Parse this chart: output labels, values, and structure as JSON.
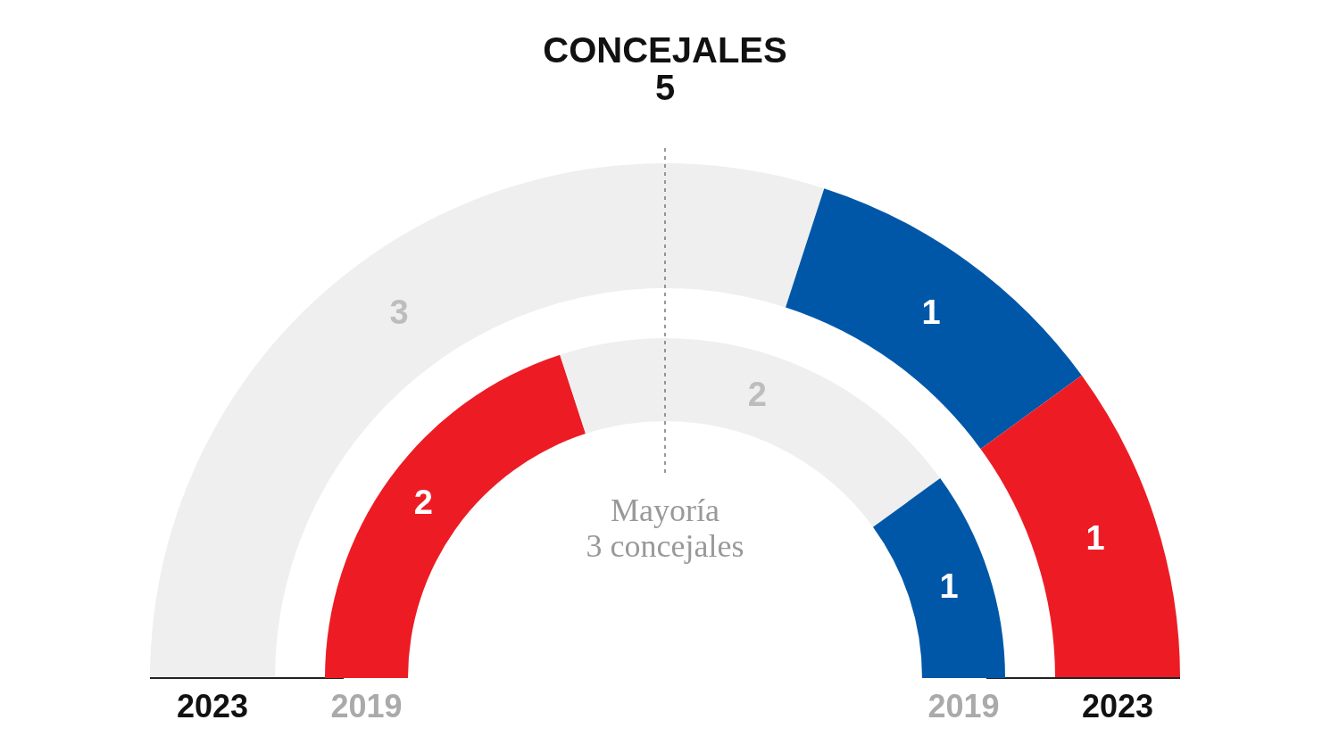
{
  "chart_data": {
    "type": "donut",
    "title": "CONCEJALES",
    "subtitle": "5",
    "categories": [
      null,
      null,
      null
    ],
    "data_labels": true,
    "series": [
      {
        "name": "2023",
        "values": [
          3,
          1,
          1
        ],
        "colors": [
          "#efefef",
          "#0057a8",
          "#ed1c24"
        ]
      },
      {
        "name": "2019",
        "values": [
          2,
          2,
          1
        ],
        "colors": [
          "#ed1c24",
          "#efefef",
          "#0057a8"
        ]
      }
    ],
    "annotations": [
      "Mayoría\n3 concejales"
    ]
  }
}
